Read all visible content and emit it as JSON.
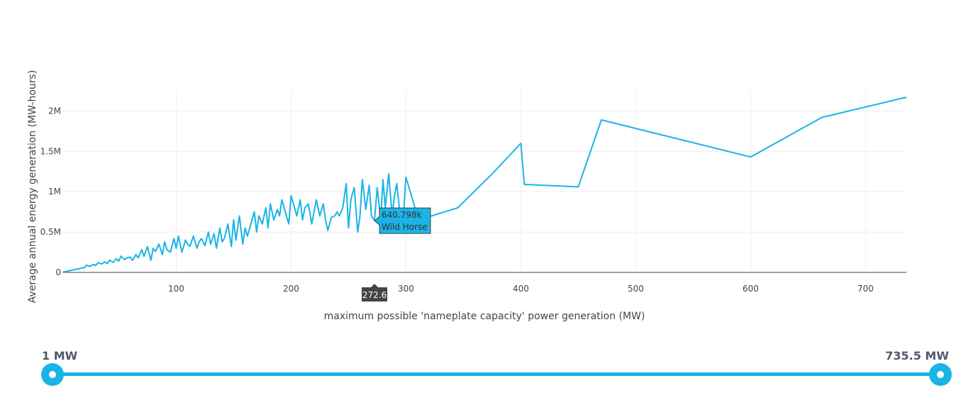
{
  "chart_data": {
    "type": "line",
    "title": "",
    "xlabel": "maximum possible 'nameplate capacity' power generation (MW)",
    "ylabel": "Average annual energy generation (MW-hours)",
    "xlim": [
      1,
      735.5
    ],
    "ylim": [
      0,
      2250000
    ],
    "xticks": [
      100,
      200,
      300,
      400,
      500,
      600,
      700
    ],
    "yticks": [
      0,
      500000,
      1000000,
      1500000,
      2000000
    ],
    "ytick_labels": [
      "0",
      "0.5M",
      "1M",
      "1.5M",
      "2M"
    ],
    "grid": true,
    "line_color": "#1ab4e6",
    "series": [
      {
        "x": [
          1,
          5,
          10,
          15,
          20,
          22,
          25,
          28,
          30,
          32,
          35,
          38,
          40,
          42,
          45,
          48,
          50,
          52,
          55,
          57,
          60,
          62,
          65,
          67,
          70,
          72,
          75,
          78,
          80,
          82,
          85,
          88,
          90,
          92,
          95,
          98,
          100,
          102,
          105,
          108,
          110,
          112,
          115,
          118,
          120,
          122,
          125,
          128,
          130,
          133,
          135,
          138,
          140,
          142,
          145,
          148,
          150,
          152,
          155,
          158,
          160,
          162,
          165,
          168,
          170,
          172,
          175,
          178,
          180,
          182,
          185,
          188,
          190,
          192,
          195,
          198,
          200,
          202,
          205,
          208,
          210,
          212,
          215,
          218,
          220,
          222,
          225,
          228,
          230,
          232,
          235,
          238,
          240,
          242,
          245,
          248,
          250,
          252,
          255,
          258,
          260,
          262,
          265,
          268,
          270,
          272.6,
          275,
          278,
          280,
          282,
          285,
          288,
          290,
          292,
          295,
          298,
          300,
          310,
          320,
          345,
          375,
          400,
          403,
          450,
          470,
          600,
          662,
          735.5
        ],
        "y": [
          2000,
          15000,
          30000,
          45000,
          60000,
          90000,
          75000,
          100000,
          85000,
          120000,
          105000,
          130000,
          110000,
          150000,
          125000,
          170000,
          140000,
          200000,
          160000,
          180000,
          190000,
          150000,
          220000,
          180000,
          280000,
          200000,
          320000,
          150000,
          300000,
          260000,
          350000,
          220000,
          380000,
          280000,
          250000,
          420000,
          300000,
          450000,
          250000,
          400000,
          350000,
          320000,
          450000,
          300000,
          380000,
          420000,
          330000,
          500000,
          350000,
          480000,
          300000,
          550000,
          380000,
          420000,
          600000,
          320000,
          650000,
          400000,
          700000,
          350000,
          550000,
          450000,
          600000,
          750000,
          500000,
          700000,
          600000,
          800000,
          550000,
          850000,
          650000,
          780000,
          700000,
          900000,
          750000,
          600000,
          950000,
          850000,
          700000,
          900000,
          650000,
          800000,
          850000,
          600000,
          750000,
          900000,
          700000,
          850000,
          650000,
          520000,
          680000,
          700000,
          750000,
          700000,
          800000,
          1100000,
          550000,
          900000,
          1050000,
          500000,
          700000,
          1150000,
          780000,
          1080000,
          700000,
          640798,
          1050000,
          650000,
          1150000,
          800000,
          1220000,
          700000,
          950000,
          1100000,
          700000,
          750000,
          1180000,
          700000,
          690000,
          800000,
          1220000,
          1600000,
          1090000,
          1060000,
          1890000,
          1430000,
          1920000,
          2170000
        ]
      }
    ],
    "hover": {
      "value": "640.798k",
      "name": "Wild Horse",
      "x_value": "272.6",
      "x_data": 272.6,
      "y_data": 640798
    }
  },
  "slider": {
    "min_label": "1 MW",
    "max_label": "735.5 MW",
    "color": "#1ab4e6"
  }
}
